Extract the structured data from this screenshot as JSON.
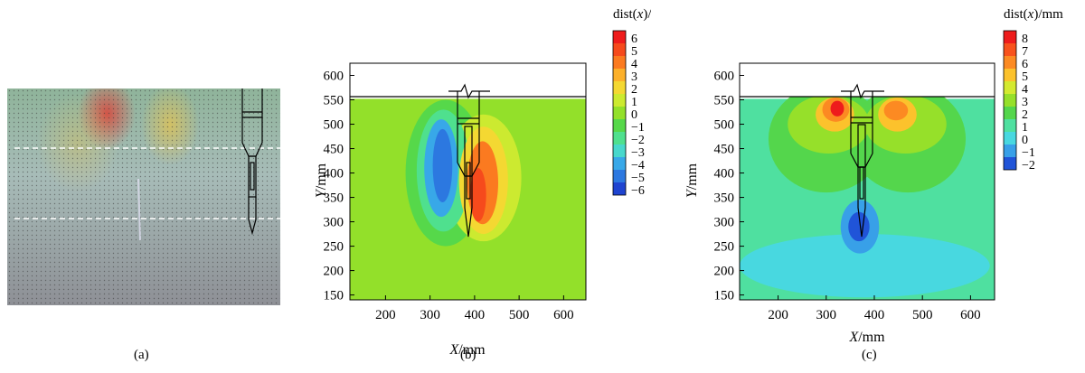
{
  "captions": {
    "a": "(a)",
    "b": "(b)",
    "c": "(c)"
  },
  "chart_data": [
    {
      "type": "heatmap",
      "panel": "(b)",
      "colorbar_title_prefix": "dist(",
      "colorbar_title_var": "x",
      "colorbar_title_suffix": ")/mm",
      "colorbar_levels": [
        "6",
        "5",
        "4",
        "3",
        "2",
        "1",
        "0",
        "−1",
        "−2",
        "−3",
        "−4",
        "−5",
        "−6"
      ],
      "colorbar_colors": [
        "#ee1c1c",
        "#f64a1c",
        "#fb7a20",
        "#fcb02a",
        "#f4d832",
        "#ccea30",
        "#93e02a",
        "#56d84a",
        "#4fe08e",
        "#48d8cc",
        "#38a8e8",
        "#2c78e0",
        "#1f44d0"
      ],
      "xlabel_var": "X",
      "xlabel_unit": "/mm",
      "ylabel_var": "Y",
      "ylabel_unit": "/mm",
      "x_ticks": [
        "200",
        "300",
        "400",
        "500",
        "600"
      ],
      "y_ticks": [
        "600",
        "550",
        "500",
        "450",
        "400",
        "350",
        "300",
        "250",
        "200",
        "150"
      ],
      "xlim": [
        120,
        650
      ],
      "ylim": [
        140,
        625
      ],
      "ground_level": 552,
      "background_value": 0,
      "regions": [
        {
          "value": -1,
          "center": [
            335,
            400
          ],
          "rx": 90,
          "ry": 150
        },
        {
          "value": 1,
          "center": [
            420,
            390
          ],
          "rx": 85,
          "ry": 130
        },
        {
          "value": -2,
          "center": [
            330,
            405
          ],
          "rx": 60,
          "ry": 125
        },
        {
          "value": 2,
          "center": [
            420,
            385
          ],
          "rx": 55,
          "ry": 110
        },
        {
          "value": -4,
          "center": [
            325,
            410
          ],
          "rx": 38,
          "ry": 100
        },
        {
          "value": 4,
          "center": [
            418,
            380
          ],
          "rx": 35,
          "ry": 85
        },
        {
          "value": -5,
          "center": [
            328,
            415
          ],
          "rx": 22,
          "ry": 75
        },
        {
          "value": 5,
          "center": [
            408,
            355
          ],
          "rx": 18,
          "ry": 55
        }
      ]
    },
    {
      "type": "heatmap",
      "panel": "(c)",
      "colorbar_title_prefix": "dist(",
      "colorbar_title_var": "x",
      "colorbar_title_suffix": ")/mm",
      "colorbar_levels": [
        "8",
        "7",
        "6",
        "5",
        "4",
        "3",
        "2",
        "1",
        "0",
        "−1",
        "−2"
      ],
      "colorbar_colors": [
        "#ee1c1c",
        "#f8521c",
        "#fc8a22",
        "#fcc22c",
        "#d4ea30",
        "#96e02a",
        "#54d64c",
        "#4fe0a0",
        "#48d8e0",
        "#38a0e8",
        "#2054d8"
      ],
      "xlabel_var": "X",
      "xlabel_unit": "/mm",
      "ylabel_var": "Y",
      "ylabel_unit": "/mm",
      "x_ticks": [
        "200",
        "300",
        "400",
        "500",
        "600"
      ],
      "y_ticks": [
        "600",
        "550",
        "500",
        "450",
        "400",
        "350",
        "300",
        "250",
        "200",
        "150"
      ],
      "xlim": [
        120,
        650
      ],
      "ylim": [
        140,
        625
      ],
      "ground_level": 552,
      "background_value": 1,
      "regions": [
        {
          "value": 0,
          "center": [
            380,
            210
          ],
          "rx": 260,
          "ry": 65
        },
        {
          "value": 2,
          "center": [
            300,
            470
          ],
          "rx": 120,
          "ry": 110
        },
        {
          "value": 2,
          "center": [
            470,
            470
          ],
          "rx": 120,
          "ry": 110
        },
        {
          "value": 3,
          "center": [
            305,
            500
          ],
          "rx": 85,
          "ry": 60
        },
        {
          "value": 3,
          "center": [
            465,
            500
          ],
          "rx": 85,
          "ry": 60
        },
        {
          "value": 5,
          "center": [
            318,
            520
          ],
          "rx": 40,
          "ry": 35
        },
        {
          "value": 5,
          "center": [
            448,
            520
          ],
          "rx": 40,
          "ry": 35
        },
        {
          "value": 6,
          "center": [
            320,
            530
          ],
          "rx": 28,
          "ry": 25
        },
        {
          "value": 6,
          "center": [
            445,
            528
          ],
          "rx": 25,
          "ry": 20
        },
        {
          "value": 8,
          "center": [
            323,
            532
          ],
          "rx": 14,
          "ry": 16
        },
        {
          "value": -1,
          "center": [
            370,
            290
          ],
          "rx": 40,
          "ry": 55
        },
        {
          "value": -2,
          "center": [
            368,
            290
          ],
          "rx": 22,
          "ry": 30
        }
      ]
    }
  ]
}
